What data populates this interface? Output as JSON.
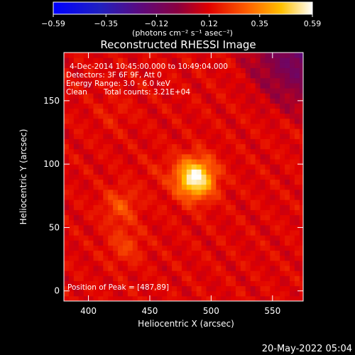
{
  "chart_data": {
    "type": "heatmap",
    "title": "Reconstructed RHESSI Image",
    "xlabel": "Heliocentric X (arcsec)",
    "ylabel": "Heliocentric Y (arcsec)",
    "xlim": [
      380,
      575
    ],
    "ylim": [
      -8,
      188
    ],
    "x_ticks": [
      400,
      450,
      500,
      550
    ],
    "y_ticks": [
      0,
      50,
      100,
      150
    ],
    "colorbar": {
      "min": -0.59,
      "max": 0.59,
      "ticks": [
        -0.59,
        -0.35,
        -0.12,
        0.12,
        0.35,
        0.59
      ],
      "tick_labels": [
        "−0.59",
        "−0.35",
        "−0.12",
        "0.12",
        "0.35",
        "0.59"
      ],
      "unit_label": "(photons cm⁻² s⁻¹ asec⁻²)",
      "colormap": "hot (blue-purple-red-orange-yellow-white)"
    },
    "annotations": {
      "time_range": "4-Dec-2014 10:45:00.000 to 10:49:04.000",
      "detectors": "Detectors: 3F 6F 9F, Att 0",
      "energy_range": "Energy Range: 3.0 - 6.0 keV",
      "algorithm": "Clean",
      "total_counts": "Total counts: 3.21E+04",
      "peak": "Position of Peak = [487,89]"
    },
    "sources": [
      {
        "x": 487,
        "y": 89,
        "peak": 0.59
      },
      {
        "x": 426,
        "y": 67,
        "peak": 0.25
      },
      {
        "x": 430,
        "y": 36,
        "peak": 0.22
      },
      {
        "x": 420,
        "y": 140,
        "peak": 0.16
      },
      {
        "x": 455,
        "y": 95,
        "peak": 0.15
      }
    ],
    "background_level": 0.12
  },
  "footer": {
    "timestamp": "20-May-2022 05:04"
  }
}
